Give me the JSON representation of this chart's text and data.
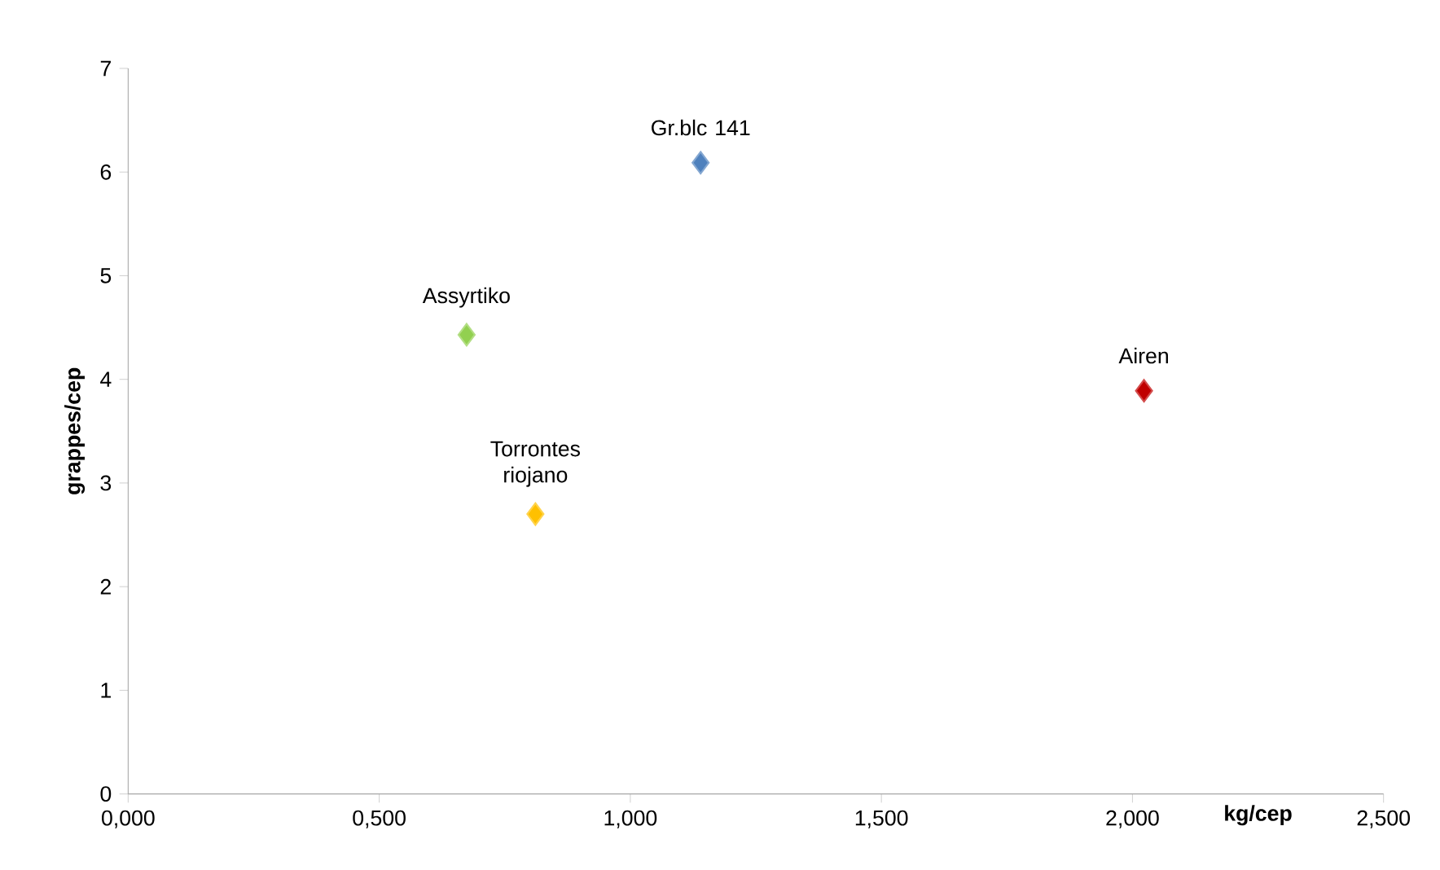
{
  "chart_data": {
    "type": "scatter",
    "xlabel": "kg/cep",
    "ylabel": "grappes/cep",
    "marker": "diamond",
    "xlim": [
      0,
      2.5
    ],
    "ylim": [
      0,
      7
    ],
    "xticks": [
      {
        "value": 0,
        "label": "0,000"
      },
      {
        "value": 0.5,
        "label": "0,500"
      },
      {
        "value": 1,
        "label": "1,000"
      },
      {
        "value": 1.5,
        "label": "1,500"
      },
      {
        "value": 2,
        "label": "2,000"
      },
      {
        "value": 2.5,
        "label": "2,500"
      }
    ],
    "yticks": [
      0,
      1,
      2,
      3,
      4,
      5,
      6,
      7
    ],
    "series": [
      {
        "name": "Gr.blc 141",
        "color": "#4f81bd",
        "x": [
          1.14
        ],
        "values": [
          6.09
        ]
      },
      {
        "name": "Assyrtiko",
        "color": "#92d050",
        "x": [
          0.674
        ],
        "values": [
          4.43
        ]
      },
      {
        "name": "Torrontes riojano",
        "color": "#ffc000",
        "x": [
          0.811
        ],
        "values": [
          2.7
        ]
      },
      {
        "name": "Airen",
        "color": "#c00000",
        "x": [
          2.023
        ],
        "values": [
          3.89
        ]
      }
    ]
  }
}
